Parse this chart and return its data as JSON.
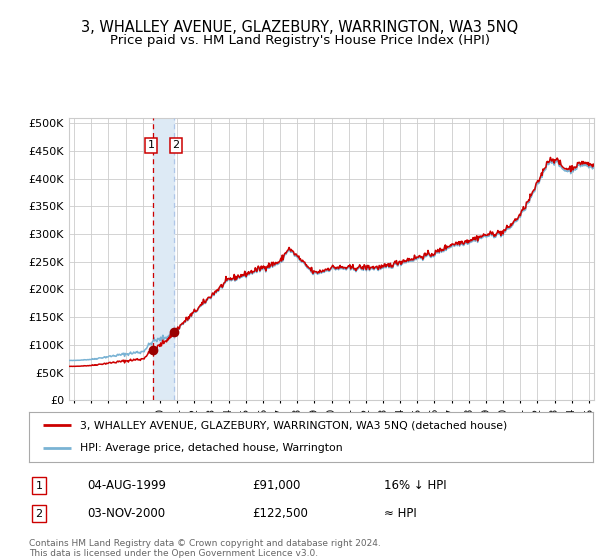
{
  "title": "3, WHALLEY AVENUE, GLAZEBURY, WARRINGTON, WA3 5NQ",
  "subtitle": "Price paid vs. HM Land Registry's House Price Index (HPI)",
  "legend_line1": "3, WHALLEY AVENUE, GLAZEBURY, WARRINGTON, WA3 5NQ (detached house)",
  "legend_line2": "HPI: Average price, detached house, Warrington",
  "annotation1_date": "04-AUG-1999",
  "annotation1_price": "£91,000",
  "annotation1_hpi": "16% ↓ HPI",
  "annotation2_date": "03-NOV-2000",
  "annotation2_price": "£122,500",
  "annotation2_hpi": "≈ HPI",
  "sale1_date_num": 1999.587,
  "sale1_price": 91000,
  "sale2_date_num": 2000.838,
  "sale2_price": 122500,
  "hpi_color": "#7ab3d4",
  "price_color": "#cc0000",
  "sale_dot_color": "#990000",
  "vline1_color": "#cc0000",
  "vline2_color": "#aec6e8",
  "vband_color": "#ddeaf5",
  "grid_color": "#cccccc",
  "bg_color": "#ffffff",
  "ylim": [
    0,
    510000
  ],
  "xlim_start": 1994.7,
  "xlim_end": 2025.3,
  "footer": "Contains HM Land Registry data © Crown copyright and database right 2024.\nThis data is licensed under the Open Government Licence v3.0.",
  "title_fontsize": 10.5,
  "subtitle_fontsize": 9.5,
  "hpi_anchors_t": [
    1995.0,
    1996.0,
    1997.0,
    1998.0,
    1999.0,
    1999.587,
    2000.0,
    2000.838,
    2001.0,
    2002.0,
    2003.0,
    2004.0,
    2005.0,
    2006.0,
    2007.0,
    2007.5,
    2008.0,
    2008.5,
    2009.0,
    2009.5,
    2010.0,
    2011.0,
    2012.0,
    2013.0,
    2014.0,
    2015.0,
    2016.0,
    2017.0,
    2018.0,
    2019.0,
    2020.0,
    2020.5,
    2021.0,
    2021.5,
    2022.0,
    2022.3,
    2022.6,
    2022.9,
    2023.2,
    2023.5,
    2023.8,
    2024.0,
    2024.3,
    2024.6,
    2025.0,
    2025.3
  ],
  "hpi_anchors_v": [
    72000,
    74000,
    79000,
    83500,
    88000,
    107000,
    110000,
    120000,
    128000,
    158000,
    188000,
    216000,
    226000,
    238000,
    248000,
    272000,
    258000,
    242000,
    228000,
    232000,
    238000,
    237000,
    238000,
    238000,
    248000,
    256000,
    263000,
    279000,
    286000,
    296000,
    301000,
    315000,
    332000,
    358000,
    388000,
    408000,
    428000,
    432000,
    428000,
    416000,
    414000,
    416000,
    420000,
    426000,
    422000,
    420000
  ],
  "noise_seed": 42,
  "noise_std": 2500
}
